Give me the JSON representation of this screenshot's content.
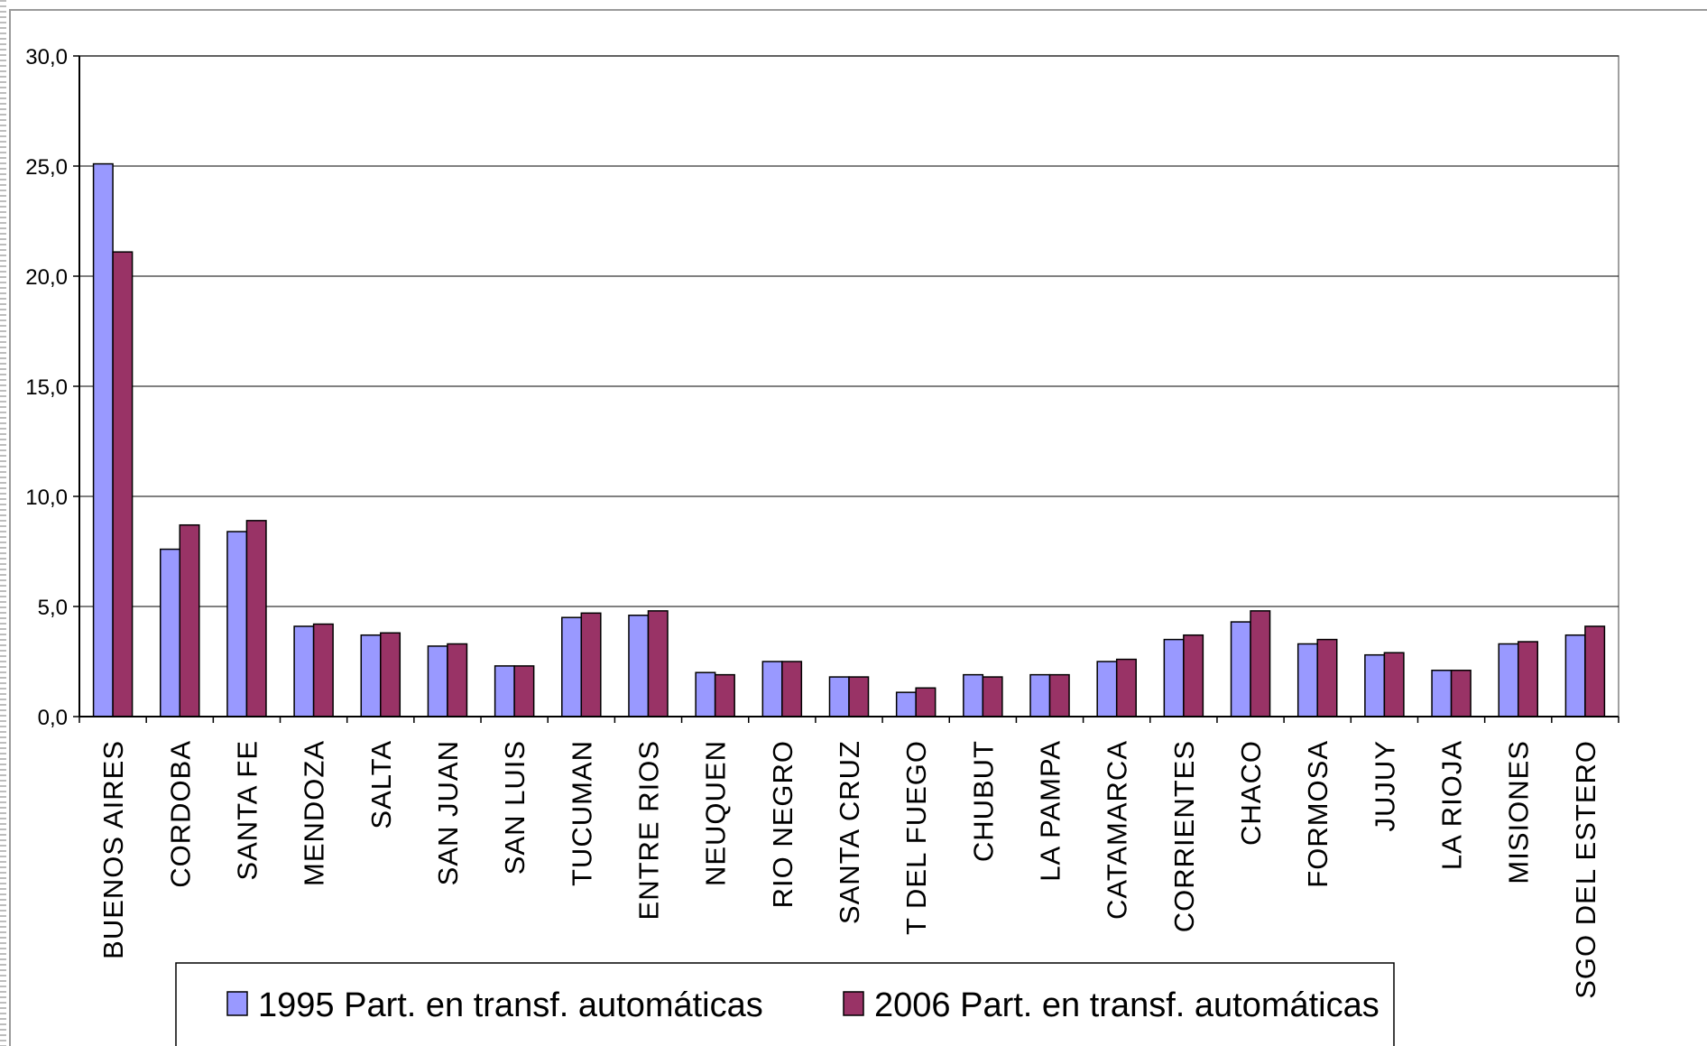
{
  "chart_data": {
    "type": "bar",
    "title": "",
    "xlabel": "",
    "ylabel": "",
    "ylim": [
      0,
      30
    ],
    "yticks": [
      "0,0",
      "5,0",
      "10,0",
      "15,0",
      "20,0",
      "25,0",
      "30,0"
    ],
    "grid": true,
    "legend_position": "bottom",
    "categories": [
      "BUENOS AIRES",
      "CORDOBA",
      "SANTA FE",
      "MENDOZA",
      "SALTA",
      "SAN JUAN",
      "SAN LUIS",
      "TUCUMAN",
      "ENTRE RIOS",
      "NEUQUEN",
      "RIO NEGRO",
      "SANTA CRUZ",
      "T DEL FUEGO",
      "CHUBUT",
      "LA PAMPA",
      "CATAMARCA",
      "CORRIENTES",
      "CHACO",
      "FORMOSA",
      "JUJUY",
      "LA RIOJA",
      "MISIONES",
      "SGO DEL ESTERO"
    ],
    "series": [
      {
        "name": "1995 Part. en transf. automáticas",
        "color": "#9999ff",
        "values": [
          25.1,
          7.6,
          8.4,
          4.1,
          3.7,
          3.2,
          2.3,
          4.5,
          4.6,
          2.0,
          2.5,
          1.8,
          1.1,
          1.9,
          1.9,
          2.5,
          3.5,
          4.3,
          3.3,
          2.8,
          2.1,
          3.3,
          3.7
        ]
      },
      {
        "name": "2006 Part. en transf. automáticas",
        "color": "#993366",
        "values": [
          21.1,
          8.7,
          8.9,
          4.2,
          3.8,
          3.3,
          2.3,
          4.7,
          4.8,
          1.9,
          2.5,
          1.8,
          1.3,
          1.8,
          1.9,
          2.6,
          3.7,
          4.8,
          3.5,
          2.9,
          2.1,
          3.4,
          4.1
        ]
      }
    ]
  }
}
